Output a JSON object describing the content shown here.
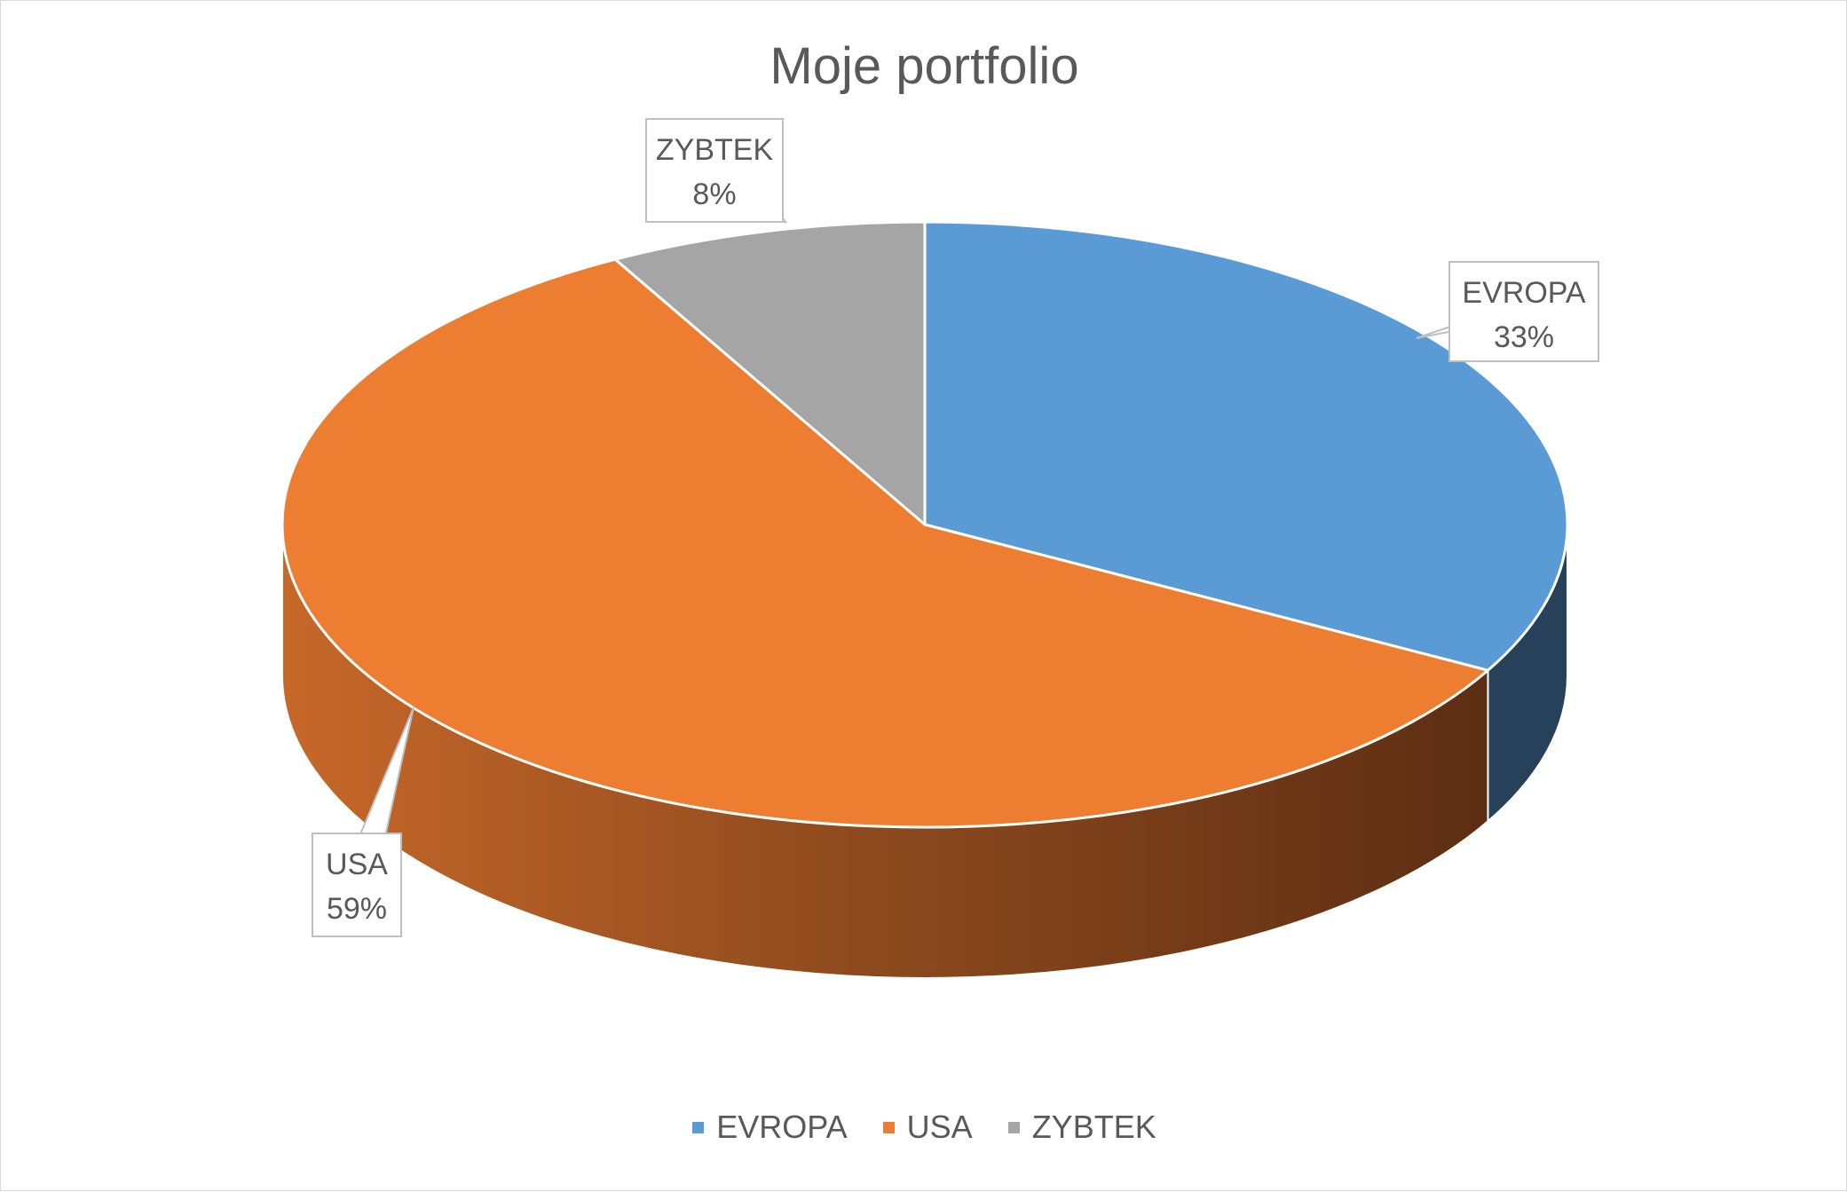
{
  "chart_data": {
    "type": "pie",
    "title": "Moje portfolio",
    "three_d": true,
    "legend_position": "bottom",
    "slices": [
      {
        "name": "EVROPA",
        "value": 33,
        "label": "33%",
        "color": "#5b9bd5"
      },
      {
        "name": "USA",
        "value": 59,
        "label": "59%",
        "color": "#ed7d31"
      },
      {
        "name": "ZYBTEK",
        "value": 8,
        "label": "8%",
        "color": "#a5a5a5"
      }
    ]
  }
}
